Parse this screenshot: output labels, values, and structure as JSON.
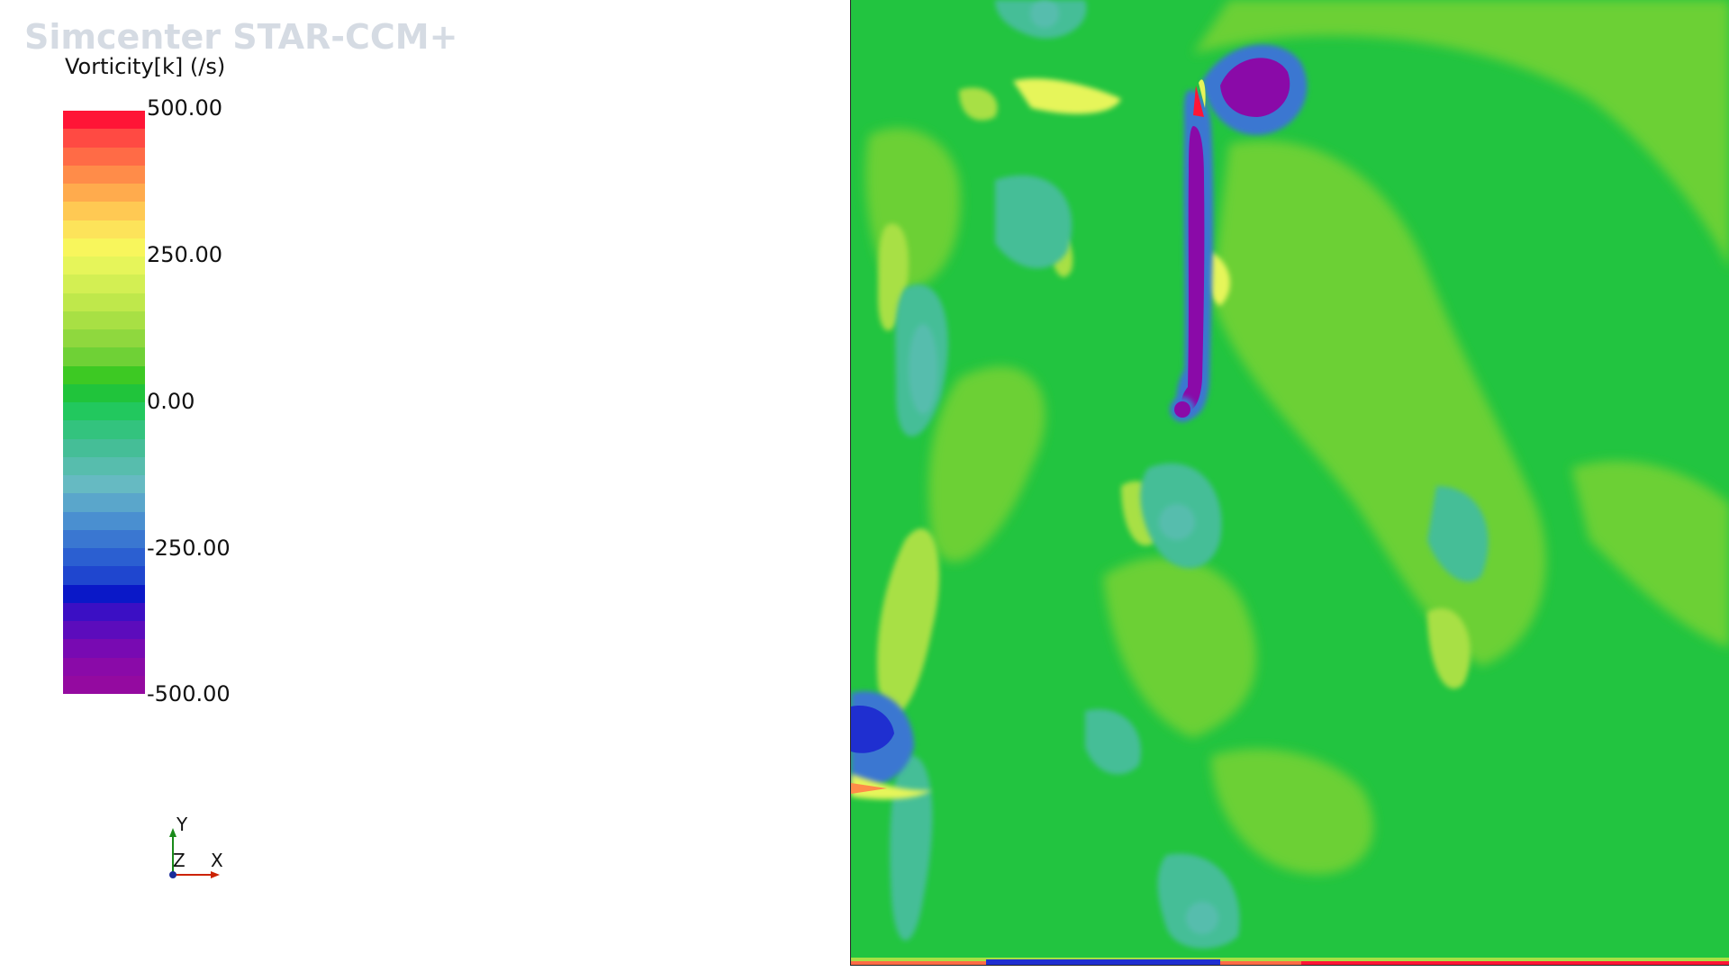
{
  "brand": "Simcenter STAR-CCM+",
  "legend": {
    "title": "Vorticity[k] (/s)",
    "ticks": [
      "500.00",
      "250.00",
      "0.00",
      "-250.00",
      "-500.00"
    ],
    "colors": [
      "#ff1536",
      "#ff4a43",
      "#ff6b46",
      "#ff8c49",
      "#ffab4d",
      "#ffc953",
      "#fde35a",
      "#f8f65c",
      "#e6f55a",
      "#d3ef53",
      "#bfe84b",
      "#a8e044",
      "#8fd83e",
      "#6fd136",
      "#3dc923",
      "#20c43b",
      "#22c85e",
      "#33c37e",
      "#45be97",
      "#57bdad",
      "#66bac2",
      "#5aa6cb",
      "#4a8fd0",
      "#3a77d1",
      "#2b5fd1",
      "#1f46cf",
      "#0a18c8",
      "#3b0fc4",
      "#5c0cbc",
      "#780ab2",
      "#8a0aa8",
      "#940aa0"
    ]
  },
  "triad": {
    "y": "Y",
    "z": "Z",
    "x": "X",
    "y_color": "#1a8a1a",
    "x_color": "#cc2200",
    "origin_color": "#1a2c9a"
  },
  "viewport": {
    "field": "vorticity-contour",
    "palette": {
      "base": "#22c440",
      "light_green": "#6fd136",
      "yellow_green": "#a8e044",
      "yellow": "#e6f55a",
      "teal": "#45be97",
      "cyan": "#57bdad",
      "blue": "#3a77d1",
      "deep_blue": "#1f2fd0",
      "purple": "#8a0aa8",
      "red": "#ff1536"
    }
  }
}
